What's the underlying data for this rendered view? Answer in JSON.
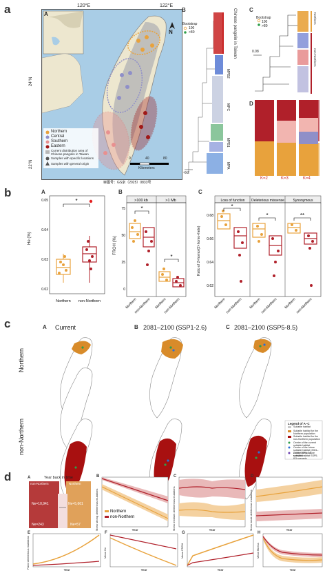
{
  "panel_a": {
    "label": "a",
    "map": {
      "sub": "A",
      "lon_labels": [
        "120°E",
        "122°E"
      ],
      "lat_labels": [
        "24°N",
        "22°N"
      ],
      "north": "N",
      "legend": [
        "Northern",
        "Central",
        "Southern",
        "Eastern",
        "Current distribution area of Chinese pangolin in Taiwan",
        "Samples with specific locations",
        "Samples with general origin"
      ],
      "scale_ticks": [
        "0",
        "40",
        "80"
      ],
      "scale_unit": "Kilometers",
      "approval": "审图号：GS京（2025）0833号"
    },
    "tree": {
      "sub": "B",
      "bootstrap_title": "Bootstrap",
      "bootstrap_items": [
        "100",
        ">80"
      ],
      "side_title": "Chinese pangolin in Taiwan",
      "clades": [
        "MPB2",
        "MPC",
        "MPB1",
        "MPA"
      ],
      "scale": "0.2"
    },
    "subtree": {
      "sub": "C",
      "bootstrap_title": "Bootstrap",
      "bootstrap_items": [
        "100",
        ">80"
      ],
      "scale": "0.08",
      "groups": [
        "Northern",
        "non-Northern",
        "Central",
        "Southern",
        "Eastern"
      ]
    },
    "admixture": {
      "sub": "D",
      "k_labels": [
        "K=2",
        "K=3",
        "K=4"
      ],
      "groups": [
        "Eastern",
        "Southern",
        "Central",
        "Northern"
      ]
    }
  },
  "panel_b": {
    "label": "b",
    "A": {
      "sub": "A",
      "ylabel": "He (%)",
      "yticks": [
        "0.05",
        "0.04",
        "0.03",
        "0.02"
      ],
      "groups": [
        "Northern",
        "non-Northern"
      ],
      "sig": "*"
    },
    "B": {
      "sub": "B",
      "ylabel": "FROH (%)",
      "headers": [
        ">100 kb",
        ">1 Mb"
      ],
      "yticks": [
        "75",
        "50",
        "25",
        "0"
      ],
      "groups": [
        "Northern",
        "non-Northern",
        "Northern",
        "non-Northern"
      ],
      "sig": [
        "*",
        "*"
      ]
    },
    "C": {
      "sub": "C",
      "ylabel": "Ratio of 2×homo/(2×homo+hete)",
      "headers": [
        "Loss of function",
        "Deleterious missense",
        "Synonymous"
      ],
      "yticks": [
        "0.68",
        "0.66",
        "0.64",
        "0.62"
      ],
      "groups": [
        "Northern",
        "non-Northern",
        "Northern",
        "non-Northern",
        "Northern",
        "non-Northern"
      ],
      "sig": [
        "*",
        "*",
        "**"
      ]
    }
  },
  "panel_c": {
    "label": "c",
    "columns": [
      {
        "sub": "A",
        "title": "Current"
      },
      {
        "sub": "B",
        "title": "2081–2100 (SSP1-2.6)"
      },
      {
        "sub": "C",
        "title": "2081–2100 (SSP5-8.5)"
      }
    ],
    "rows": [
      "Northern",
      "non-Northern"
    ],
    "legend_title": "Legend of A–C",
    "legend_items": [
      "Suitable habitat",
      "Suitable habitat for the Northern population",
      "Suitable habitat for the non-Northern population",
      "Center of the current suitable habitat",
      "Center of the future suitable habitat (2081–2100) SSP1-2.6 scenario",
      "Center of the future suitable habitat SSP5-8.5 scenario"
    ]
  },
  "panel_d": {
    "label": "d",
    "A": {
      "sub": "A",
      "title": "Year back in time",
      "pops": [
        "non-Northern",
        "Northern"
      ],
      "ne_left": "Ne=10,941",
      "ne_right": "Ne=5,661",
      "ne_anc": "Ne=243",
      "ne_anc2": "Ne=57"
    },
    "B": {
      "sub": "B",
      "ylabel": "Mean strong deleterious mutations",
      "xlabel": "Year",
      "legend": [
        "Northern",
        "non-Northern"
      ]
    },
    "C": {
      "sub": "C",
      "ylabel": "Mean medium deleterious mutations",
      "xlabel": "Year"
    },
    "D": {
      "sub": "D",
      "ylabel": "Mean weak deleterious mutations",
      "xlabel": "Year"
    },
    "E": {
      "sub": "E",
      "ylabel": "Fixed deleterious mutations",
      "xlabel": "Year"
    },
    "F": {
      "sub": "F",
      "ylabel": "Mean He",
      "xlabel": "Year"
    },
    "G": {
      "sub": "G",
      "ylabel": "Mean FROH",
      "xlabel": "Year"
    },
    "H": {
      "sub": "H",
      "ylabel": "Mean fitness",
      "xlabel": "Year"
    }
  },
  "colors": {
    "northern": "#e8a23c",
    "central": "#8f8fc8",
    "southern": "#e89090",
    "eastern": "#a01818",
    "nonnorthern": "#b0202a",
    "sea": "#a9cde6",
    "land": "#e8e4d4",
    "habitat_orange": "#d88b2a",
    "habitat_red": "#a81010"
  }
}
